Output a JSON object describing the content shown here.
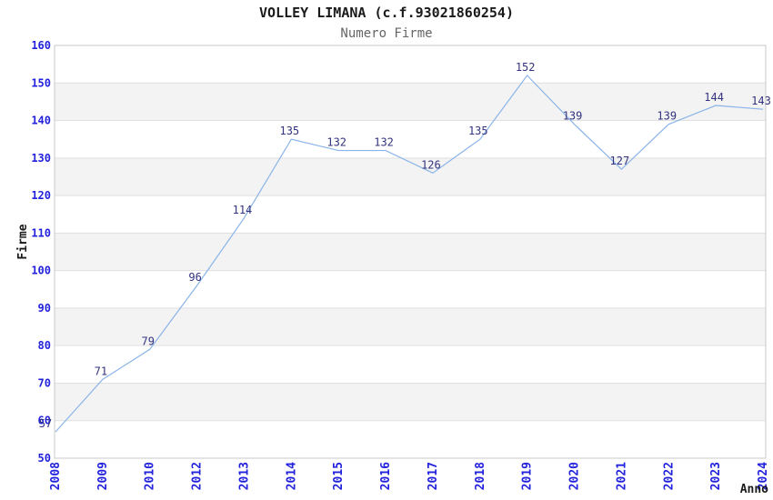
{
  "chart_data": {
    "type": "line",
    "title": "VOLLEY LIMANA (c.f.93021860254)",
    "subtitle": "Numero Firme",
    "xlabel": "Anno",
    "ylabel": "Firme",
    "categories": [
      "2008",
      "2009",
      "2010",
      "2012",
      "2013",
      "2014",
      "2015",
      "2016",
      "2017",
      "2018",
      "2019",
      "2020",
      "2021",
      "2022",
      "2023",
      "2024"
    ],
    "values": [
      57,
      71,
      79,
      96,
      114,
      135,
      132,
      132,
      126,
      135,
      152,
      139,
      127,
      139,
      144,
      143
    ],
    "ylim": [
      50,
      160
    ],
    "ytick_step": 10,
    "yticks": [
      160,
      150,
      140,
      130,
      120,
      110,
      100,
      90,
      80,
      70,
      60,
      50
    ],
    "grid": "horizontal-alternating-bands",
    "legend": "none",
    "data_labels": true,
    "markers": "none",
    "colors": {
      "line": "#8ab4e8",
      "data_label": "#333380",
      "tick_label": "#2222dd",
      "band_fill": "#f3f3f3",
      "gridline": "#e0e0e0",
      "plot_border": "#c8c8c8",
      "title": "#1a1a1a",
      "subtitle": "#666666",
      "axis_title": "#1a1a1a",
      "background": "#ffffff"
    }
  }
}
